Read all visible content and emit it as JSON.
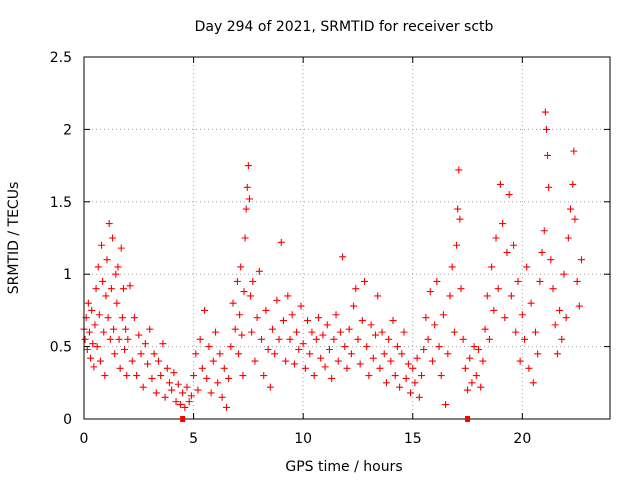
{
  "chart_data": {
    "type": "scatter",
    "title": "Day 294 of 2021, SRMTID for receiver sctb",
    "xlabel": "GPS time / hours",
    "ylabel": "SRMTID / TECUs",
    "xlim": [
      0,
      24
    ],
    "ylim": [
      0,
      2.5
    ],
    "xticks": [
      0,
      5,
      10,
      15,
      20
    ],
    "xtick_labels": [
      "0",
      "5",
      "10",
      "15",
      "20"
    ],
    "yticks": [
      0,
      0.5,
      1,
      1.5,
      2,
      2.5
    ],
    "ytick_labels": [
      "0",
      "0.5",
      "1",
      "1.5",
      "2",
      "2.5"
    ],
    "grid": true,
    "marker": "+",
    "color": "#ff0000",
    "axis_markers_x": [
      4.5,
      17.5
    ],
    "series": [
      {
        "name": "SRMTID",
        "points": [
          [
            0.0,
            0.62
          ],
          [
            0.05,
            0.55
          ],
          [
            0.1,
            0.7
          ],
          [
            0.15,
            0.48
          ],
          [
            0.2,
            0.8
          ],
          [
            0.25,
            0.6
          ],
          [
            0.3,
            0.42
          ],
          [
            0.35,
            0.75
          ],
          [
            0.4,
            0.52
          ],
          [
            0.45,
            0.36
          ],
          [
            0.5,
            0.65
          ],
          [
            0.55,
            0.9
          ],
          [
            0.6,
            0.5
          ],
          [
            0.65,
            1.05
          ],
          [
            0.7,
            0.72
          ],
          [
            0.75,
            0.4
          ],
          [
            0.8,
            1.2
          ],
          [
            0.85,
            0.95
          ],
          [
            0.9,
            0.6
          ],
          [
            0.95,
            0.3
          ],
          [
            1.0,
            0.85
          ],
          [
            1.05,
            1.1
          ],
          [
            1.1,
            0.7
          ],
          [
            1.15,
            1.35
          ],
          [
            1.2,
            0.55
          ],
          [
            1.25,
            0.9
          ],
          [
            1.3,
            1.25
          ],
          [
            1.35,
            0.62
          ],
          [
            1.4,
            0.45
          ],
          [
            1.45,
            1.0
          ],
          [
            1.5,
            0.8
          ],
          [
            1.55,
            1.05
          ],
          [
            1.6,
            0.55
          ],
          [
            1.65,
            0.35
          ],
          [
            1.7,
            1.18
          ],
          [
            1.75,
            0.7
          ],
          [
            1.8,
            0.9
          ],
          [
            1.85,
            0.48
          ],
          [
            1.9,
            0.62
          ],
          [
            1.95,
            0.3
          ],
          [
            2.0,
            0.55
          ],
          [
            2.1,
            0.92
          ],
          [
            2.2,
            0.4
          ],
          [
            2.3,
            0.7
          ],
          [
            2.4,
            0.3
          ],
          [
            2.5,
            0.58
          ],
          [
            2.6,
            0.45
          ],
          [
            2.7,
            0.22
          ],
          [
            2.8,
            0.52
          ],
          [
            2.9,
            0.38
          ],
          [
            3.0,
            0.62
          ],
          [
            3.1,
            0.28
          ],
          [
            3.2,
            0.45
          ],
          [
            3.3,
            0.18
          ],
          [
            3.4,
            0.4
          ],
          [
            3.5,
            0.3
          ],
          [
            3.6,
            0.52
          ],
          [
            3.7,
            0.15
          ],
          [
            3.8,
            0.35
          ],
          [
            3.9,
            0.25
          ],
          [
            4.0,
            0.2
          ],
          [
            4.1,
            0.32
          ],
          [
            4.2,
            0.12
          ],
          [
            4.3,
            0.24
          ],
          [
            4.4,
            0.1
          ],
          [
            4.5,
            0.18
          ],
          [
            4.6,
            0.08
          ],
          [
            4.7,
            0.22
          ],
          [
            4.8,
            0.12
          ],
          [
            4.9,
            0.16
          ],
          [
            5.0,
            0.3
          ],
          [
            5.1,
            0.45
          ],
          [
            5.2,
            0.2
          ],
          [
            5.3,
            0.55
          ],
          [
            5.4,
            0.35
          ],
          [
            5.5,
            0.75
          ],
          [
            5.6,
            0.28
          ],
          [
            5.7,
            0.5
          ],
          [
            5.8,
            0.18
          ],
          [
            5.9,
            0.4
          ],
          [
            6.0,
            0.6
          ],
          [
            6.1,
            0.25
          ],
          [
            6.2,
            0.45
          ],
          [
            6.3,
            0.15
          ],
          [
            6.4,
            0.35
          ],
          [
            6.5,
            0.08
          ],
          [
            6.6,
            0.28
          ],
          [
            6.7,
            0.5
          ],
          [
            6.8,
            0.8
          ],
          [
            6.9,
            0.62
          ],
          [
            7.0,
            0.95
          ],
          [
            7.05,
            0.45
          ],
          [
            7.1,
            0.72
          ],
          [
            7.15,
            1.05
          ],
          [
            7.2,
            0.58
          ],
          [
            7.25,
            0.3
          ],
          [
            7.3,
            0.88
          ],
          [
            7.35,
            1.25
          ],
          [
            7.4,
            1.45
          ],
          [
            7.45,
            1.6
          ],
          [
            7.5,
            1.75
          ],
          [
            7.55,
            1.52
          ],
          [
            7.6,
            0.85
          ],
          [
            7.65,
            0.6
          ],
          [
            7.7,
            0.95
          ],
          [
            7.8,
            0.4
          ],
          [
            7.9,
            0.7
          ],
          [
            8.0,
            1.02
          ],
          [
            8.1,
            0.55
          ],
          [
            8.2,
            0.3
          ],
          [
            8.3,
            0.75
          ],
          [
            8.4,
            0.48
          ],
          [
            8.5,
            0.22
          ],
          [
            8.6,
            0.62
          ],
          [
            8.7,
            0.45
          ],
          [
            8.8,
            0.82
          ],
          [
            8.9,
            0.55
          ],
          [
            9.0,
            1.22
          ],
          [
            9.1,
            0.68
          ],
          [
            9.2,
            0.4
          ],
          [
            9.3,
            0.85
          ],
          [
            9.4,
            0.55
          ],
          [
            9.5,
            0.72
          ],
          [
            9.6,
            0.38
          ],
          [
            9.7,
            0.6
          ],
          [
            9.8,
            0.48
          ],
          [
            9.9,
            0.78
          ],
          [
            10.0,
            0.52
          ],
          [
            10.1,
            0.35
          ],
          [
            10.2,
            0.68
          ],
          [
            10.3,
            0.45
          ],
          [
            10.4,
            0.6
          ],
          [
            10.5,
            0.3
          ],
          [
            10.6,
            0.55
          ],
          [
            10.7,
            0.7
          ],
          [
            10.8,
            0.42
          ],
          [
            10.9,
            0.58
          ],
          [
            11.0,
            0.36
          ],
          [
            11.1,
            0.65
          ],
          [
            11.2,
            0.48
          ],
          [
            11.3,
            0.28
          ],
          [
            11.4,
            0.55
          ],
          [
            11.5,
            0.72
          ],
          [
            11.6,
            0.4
          ],
          [
            11.7,
            0.6
          ],
          [
            11.8,
            1.12
          ],
          [
            11.9,
            0.5
          ],
          [
            12.0,
            0.35
          ],
          [
            12.1,
            0.62
          ],
          [
            12.2,
            0.45
          ],
          [
            12.3,
            0.78
          ],
          [
            12.4,
            0.9
          ],
          [
            12.5,
            0.55
          ],
          [
            12.6,
            0.38
          ],
          [
            12.7,
            0.68
          ],
          [
            12.8,
            0.95
          ],
          [
            12.9,
            0.5
          ],
          [
            13.0,
            0.3
          ],
          [
            13.1,
            0.65
          ],
          [
            13.2,
            0.42
          ],
          [
            13.3,
            0.58
          ],
          [
            13.4,
            0.85
          ],
          [
            13.5,
            0.35
          ],
          [
            13.6,
            0.6
          ],
          [
            13.7,
            0.45
          ],
          [
            13.8,
            0.25
          ],
          [
            13.9,
            0.55
          ],
          [
            14.0,
            0.4
          ],
          [
            14.1,
            0.68
          ],
          [
            14.2,
            0.3
          ],
          [
            14.3,
            0.5
          ],
          [
            14.4,
            0.22
          ],
          [
            14.5,
            0.45
          ],
          [
            14.6,
            0.6
          ],
          [
            14.7,
            0.28
          ],
          [
            14.8,
            0.38
          ],
          [
            14.9,
            0.18
          ],
          [
            15.0,
            0.35
          ],
          [
            15.1,
            0.25
          ],
          [
            15.2,
            0.42
          ],
          [
            15.3,
            0.15
          ],
          [
            15.4,
            0.3
          ],
          [
            15.5,
            0.48
          ],
          [
            15.6,
            0.7
          ],
          [
            15.7,
            0.55
          ],
          [
            15.8,
            0.88
          ],
          [
            15.9,
            0.4
          ],
          [
            16.0,
            0.65
          ],
          [
            16.1,
            0.95
          ],
          [
            16.2,
            0.5
          ],
          [
            16.3,
            0.3
          ],
          [
            16.4,
            0.72
          ],
          [
            16.5,
            0.1
          ],
          [
            16.6,
            0.45
          ],
          [
            16.7,
            0.85
          ],
          [
            16.8,
            1.05
          ],
          [
            16.9,
            0.6
          ],
          [
            17.0,
            1.2
          ],
          [
            17.05,
            1.45
          ],
          [
            17.1,
            1.72
          ],
          [
            17.15,
            1.38
          ],
          [
            17.2,
            0.9
          ],
          [
            17.3,
            0.55
          ],
          [
            17.4,
            0.35
          ],
          [
            17.5,
            0.2
          ],
          [
            17.6,
            0.42
          ],
          [
            17.7,
            0.25
          ],
          [
            17.8,
            0.5
          ],
          [
            17.9,
            0.3
          ],
          [
            18.0,
            0.48
          ],
          [
            18.1,
            0.22
          ],
          [
            18.2,
            0.4
          ],
          [
            18.3,
            0.62
          ],
          [
            18.4,
            0.85
          ],
          [
            18.5,
            0.55
          ],
          [
            18.6,
            1.05
          ],
          [
            18.7,
            0.75
          ],
          [
            18.8,
            1.25
          ],
          [
            18.9,
            0.9
          ],
          [
            19.0,
            1.62
          ],
          [
            19.1,
            1.35
          ],
          [
            19.2,
            0.7
          ],
          [
            19.3,
            1.15
          ],
          [
            19.4,
            1.55
          ],
          [
            19.5,
            0.85
          ],
          [
            19.6,
            1.2
          ],
          [
            19.7,
            0.6
          ],
          [
            19.8,
            0.95
          ],
          [
            19.9,
            0.4
          ],
          [
            20.0,
            0.72
          ],
          [
            20.1,
            0.55
          ],
          [
            20.2,
            1.05
          ],
          [
            20.3,
            0.35
          ],
          [
            20.4,
            0.8
          ],
          [
            20.5,
            0.25
          ],
          [
            20.6,
            0.6
          ],
          [
            20.7,
            0.45
          ],
          [
            20.8,
            0.95
          ],
          [
            20.9,
            1.15
          ],
          [
            21.0,
            1.3
          ],
          [
            21.05,
            2.12
          ],
          [
            21.1,
            2.0
          ],
          [
            21.15,
            1.82
          ],
          [
            21.2,
            1.6
          ],
          [
            21.3,
            1.1
          ],
          [
            21.4,
            0.9
          ],
          [
            21.5,
            0.65
          ],
          [
            21.6,
            0.45
          ],
          [
            21.7,
            0.75
          ],
          [
            21.8,
            0.55
          ],
          [
            21.9,
            1.0
          ],
          [
            22.0,
            0.7
          ],
          [
            22.1,
            1.25
          ],
          [
            22.2,
            1.45
          ],
          [
            22.3,
            1.62
          ],
          [
            22.35,
            1.85
          ],
          [
            22.4,
            1.38
          ],
          [
            22.5,
            0.95
          ],
          [
            22.6,
            0.78
          ],
          [
            22.7,
            1.1
          ]
        ]
      }
    ]
  }
}
